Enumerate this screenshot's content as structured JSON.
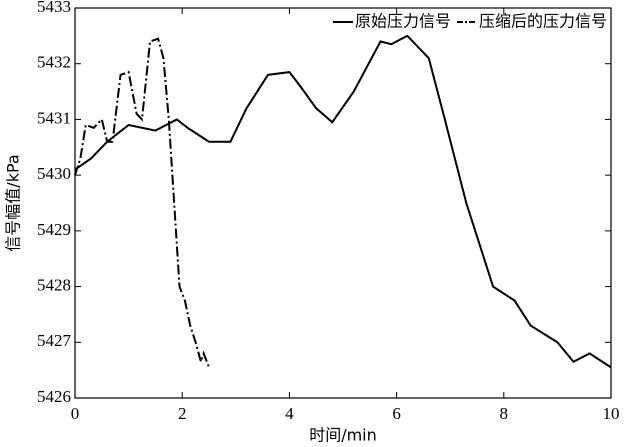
{
  "chart_data": {
    "type": "line",
    "xlabel": "时间/min",
    "ylabel": "信号幅值/kPa",
    "xlim": [
      0,
      10
    ],
    "xticks": [
      0,
      2,
      4,
      6,
      8,
      10
    ],
    "ylim": [
      5426,
      5433
    ],
    "yticks": [
      5426,
      5427,
      5428,
      5429,
      5430,
      5431,
      5432,
      5433
    ],
    "legend": "top-right",
    "series": [
      {
        "name": "原始压力信号",
        "color": "#000000",
        "linestyle": "solid",
        "x": [
          0,
          0.3,
          0.6,
          1.0,
          1.5,
          1.9,
          2.1,
          2.5,
          2.9,
          3.2,
          3.6,
          4.0,
          4.2,
          4.5,
          4.8,
          5.2,
          5.7,
          5.9,
          6.2,
          6.6,
          6.9,
          7.3,
          7.8,
          8.2,
          8.5,
          9.0,
          9.3,
          9.6,
          10.0
        ],
        "values": [
          5430.1,
          5430.3,
          5430.6,
          5430.9,
          5430.8,
          5431.0,
          5430.85,
          5430.6,
          5430.6,
          5431.2,
          5431.8,
          5431.85,
          5431.6,
          5431.2,
          5430.95,
          5431.5,
          5432.4,
          5432.35,
          5432.5,
          5432.1,
          5431.0,
          5429.5,
          5428.0,
          5427.75,
          5427.3,
          5427.0,
          5426.65,
          5426.8,
          5426.55
        ]
      },
      {
        "name": "压缩后的压力信号",
        "color": "#000000",
        "linestyle": "dashdot",
        "x": [
          0,
          0.1,
          0.2,
          0.35,
          0.5,
          0.6,
          0.7,
          0.85,
          1.0,
          1.15,
          1.25,
          1.4,
          1.55,
          1.65,
          1.75,
          1.85,
          1.95,
          2.05,
          2.15,
          2.25,
          2.35,
          2.4,
          2.5
        ],
        "values": [
          5430.0,
          5430.3,
          5430.9,
          5430.85,
          5431.0,
          5430.6,
          5430.6,
          5431.8,
          5431.85,
          5431.1,
          5431.0,
          5432.4,
          5432.45,
          5432.1,
          5431.0,
          5429.5,
          5428.0,
          5427.75,
          5427.3,
          5427.0,
          5426.65,
          5426.8,
          5426.55
        ]
      }
    ]
  }
}
